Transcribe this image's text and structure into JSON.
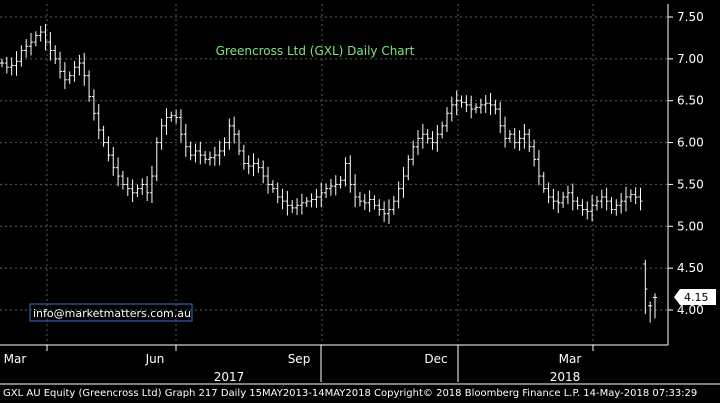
{
  "chart_data": {
    "type": "ohlc",
    "title": "Greencross Ltd (GXL) Daily Chart",
    "watermark": "info@marketmatters.com.au",
    "last_price_label": "4.15",
    "last_price": 4.15,
    "ylim": [
      3.5,
      7.6
    ],
    "y_ticks": [
      "7.50",
      "7.00",
      "6.50",
      "6.00",
      "5.50",
      "5.00",
      "4.50",
      "4.00"
    ],
    "y_tick_values": [
      7.5,
      7.0,
      6.5,
      6.0,
      5.5,
      5.0,
      4.5,
      4.0
    ],
    "x_months": [
      "Mar",
      "Jun",
      "Sep",
      "Dec",
      "Mar"
    ],
    "x_years": [
      "2017",
      "2018"
    ],
    "grid": true,
    "colors": {
      "background": "#000000",
      "bars": "#ffffff",
      "grid": "#5a5a5a",
      "title": "#7ee37e",
      "watermark_text": "#ffffff",
      "watermark_border": "#3b6fd6"
    },
    "closes": [
      6.95,
      6.9,
      6.92,
      6.97,
      7.1,
      7.15,
      7.2,
      7.28,
      7.32,
      7.2,
      7.1,
      7.0,
      6.85,
      6.75,
      6.8,
      6.9,
      6.95,
      6.8,
      6.55,
      6.35,
      6.15,
      6.0,
      5.85,
      5.7,
      5.6,
      5.5,
      5.45,
      5.4,
      5.45,
      5.5,
      5.4,
      5.6,
      6.0,
      6.2,
      6.3,
      6.32,
      6.3,
      6.1,
      5.95,
      5.85,
      5.9,
      5.85,
      5.8,
      5.82,
      5.85,
      5.9,
      6.0,
      6.2,
      6.1,
      5.9,
      5.75,
      5.72,
      5.75,
      5.7,
      5.6,
      5.5,
      5.45,
      5.35,
      5.3,
      5.25,
      5.22,
      5.25,
      5.28,
      5.3,
      5.32,
      5.35,
      5.4,
      5.45,
      5.48,
      5.5,
      5.55,
      5.75,
      5.5,
      5.35,
      5.3,
      5.28,
      5.32,
      5.25,
      5.2,
      5.15,
      5.2,
      5.3,
      5.45,
      5.6,
      5.8,
      5.95,
      6.05,
      6.1,
      6.05,
      6.0,
      6.1,
      6.2,
      6.35,
      6.45,
      6.5,
      6.48,
      6.45,
      6.4,
      6.42,
      6.45,
      6.47,
      6.45,
      6.4,
      6.2,
      6.05,
      6.1,
      6.0,
      6.05,
      6.1,
      5.95,
      5.8,
      5.6,
      5.45,
      5.35,
      5.3,
      5.28,
      5.35,
      5.4,
      5.3,
      5.25,
      5.2,
      5.18,
      5.25,
      5.3,
      5.35,
      5.3,
      5.2,
      5.25,
      5.3,
      5.35,
      5.38,
      5.35,
      5.3,
      4.25,
      4.05,
      4.15
    ],
    "last_bar_ranges": [
      {
        "high": 4.6,
        "low": 3.95
      },
      {
        "high": 4.1,
        "low": 3.85
      },
      {
        "high": 4.2,
        "low": 3.9
      }
    ]
  },
  "footer": {
    "text": "GXL AU Equity (Greencross Ltd) Graph 217  Daily 15MAY2013-14MAY2018 Copyright© 2018 Bloomberg Finance L.P.  14-May-2018 07:33:29"
  }
}
